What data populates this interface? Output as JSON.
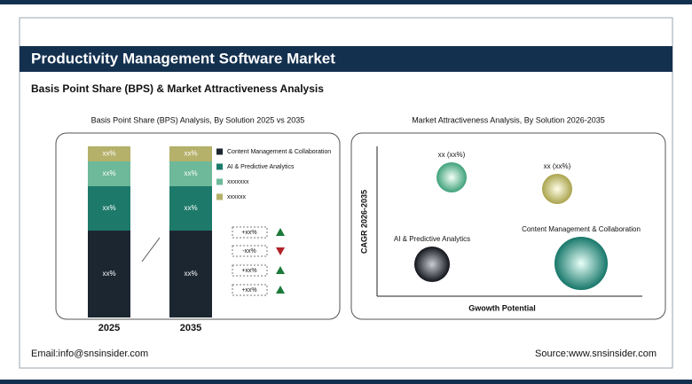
{
  "header": {
    "title": "Productivity Management Software Market",
    "subtitle": "Basis Point Share (BPS) & Market Attractiveness Analysis"
  },
  "left_panel": {
    "title": "Basis Point Share (BPS) Analysis, By Solution 2025 vs 2035",
    "bars": [
      {
        "label": "2025",
        "segments": [
          "xx%",
          "xx%",
          "xx%",
          "xx%"
        ]
      },
      {
        "label": "2035",
        "segments": [
          "xx%",
          "xx%",
          "xx%",
          "xx%"
        ]
      }
    ],
    "legend": [
      "Content Management & Collaboration",
      "AI & Predictive Analytics",
      "xxxxxxx",
      "xxxxxx"
    ],
    "changes": [
      "+xx%",
      "-xx%",
      "+xx%",
      "+xx%"
    ]
  },
  "right_panel": {
    "title": "Market Attractiveness Analysis, By Solution 2026-2035",
    "y_axis": "CAGR 2026-2035",
    "x_axis": "Gwowth Potential",
    "bubbles": [
      "xx (xx%)",
      "xx (xx%)",
      "AI & Predictive Analytics",
      "Content Management & Collaboration"
    ]
  },
  "footer": {
    "email": "Email:info@snsinsider.com",
    "source": "Source:www.snsinsider.com"
  }
}
